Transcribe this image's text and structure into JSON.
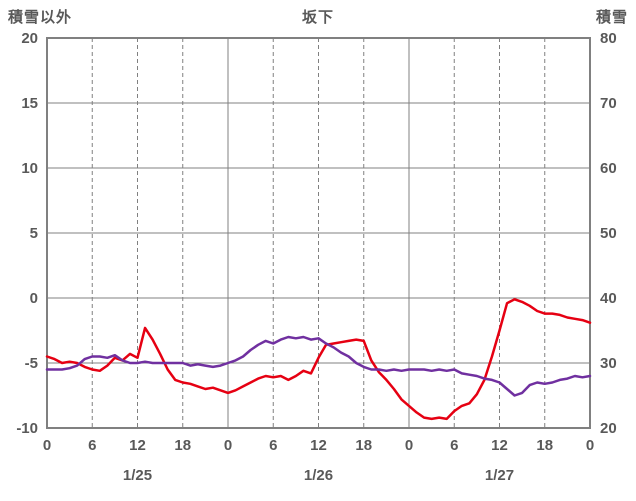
{
  "header": {
    "left_axis_title": "積雪以外",
    "title": "坂下",
    "right_axis_title": "積雪"
  },
  "colors": {
    "text": "#595959",
    "grid": "#808080",
    "border": "#808080",
    "background": "#ffffff"
  },
  "chart_data": {
    "type": "line",
    "title": "坂下",
    "left_axis": {
      "label": "積雪以外",
      "min": -10,
      "max": 20,
      "ticks": [
        20,
        15,
        10,
        5,
        0,
        -5,
        -10
      ]
    },
    "right_axis": {
      "label": "積雪",
      "min": 20,
      "max": 80,
      "ticks": [
        80,
        70,
        60,
        50,
        40,
        30,
        20
      ]
    },
    "x_axis": {
      "min_hour": 0,
      "max_hour": 72,
      "tick_interval_hours": 6,
      "solid_line_every_hours": 24,
      "tick_labels": [
        "0",
        "6",
        "12",
        "18",
        "0",
        "6",
        "12",
        "18",
        "0",
        "6",
        "12",
        "18",
        "0"
      ],
      "day_labels": [
        {
          "label": "1/25",
          "hour": 12
        },
        {
          "label": "1/26",
          "hour": 36
        },
        {
          "label": "1/27",
          "hour": 60
        }
      ]
    },
    "grid": {
      "on": true,
      "horizontal": "solid",
      "vertical_day": "solid",
      "vertical_6h": "dashed"
    },
    "legend": "none",
    "series": [
      {
        "name": "temperature-red",
        "axis": "left",
        "color": "#e60012",
        "width": 2.5,
        "values": [
          -4.5,
          -4.7,
          -5.0,
          -4.9,
          -5.0,
          -5.3,
          -5.5,
          -5.6,
          -5.2,
          -4.6,
          -4.8,
          -4.3,
          -4.6,
          -2.3,
          -3.2,
          -4.3,
          -5.5,
          -6.3,
          -6.5,
          -6.6,
          -6.8,
          -7.0,
          -6.9,
          -7.1,
          -7.3,
          -7.1,
          -6.8,
          -6.5,
          -6.2,
          -6.0,
          -6.1,
          -6.0,
          -6.3,
          -6.0,
          -5.6,
          -5.8,
          -4.6,
          -3.6,
          -3.5,
          -3.4,
          -3.3,
          -3.2,
          -3.3,
          -4.8,
          -5.7,
          -6.3,
          -7.0,
          -7.8,
          -8.3,
          -8.8,
          -9.2,
          -9.3,
          -9.2,
          -9.3,
          -8.7,
          -8.3,
          -8.1,
          -7.4,
          -6.3,
          -4.5,
          -2.5,
          -0.4,
          -0.1,
          -0.3,
          -0.6,
          -1.0,
          -1.2,
          -1.2,
          -1.3,
          -1.5,
          -1.6,
          -1.7,
          -1.9
        ]
      },
      {
        "name": "snow-depth-purple",
        "axis": "right",
        "color": "#7030a0",
        "width": 2.5,
        "values": [
          29,
          29,
          29,
          29.2,
          29.6,
          30.6,
          31,
          31,
          30.8,
          31.2,
          30.4,
          30,
          30,
          30.2,
          30,
          30,
          30,
          30,
          30,
          29.6,
          29.8,
          29.6,
          29.4,
          29.6,
          30,
          30.4,
          31,
          32,
          32.8,
          33.4,
          33,
          33.6,
          34,
          33.8,
          34,
          33.6,
          33.8,
          33,
          32.4,
          31.6,
          31,
          30,
          29.4,
          29,
          29,
          28.8,
          29,
          28.8,
          29,
          29,
          29,
          28.8,
          29,
          28.8,
          29,
          28.4,
          28.2,
          28,
          27.6,
          27.4,
          27,
          26,
          25,
          25.4,
          26.6,
          27,
          26.8,
          27,
          27.4,
          27.6,
          28,
          27.8,
          28
        ]
      }
    ]
  }
}
